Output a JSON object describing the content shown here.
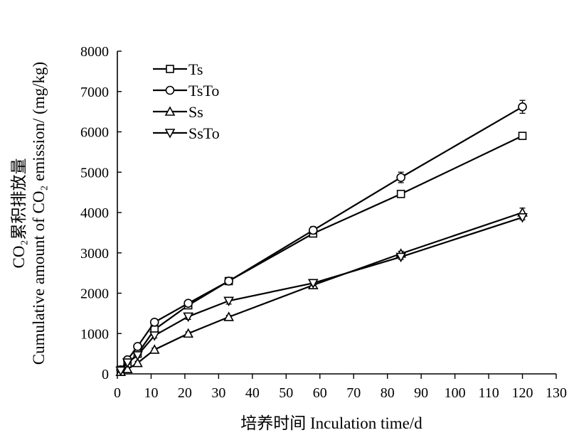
{
  "chart_data": {
    "type": "line",
    "ylabel_cn": "CO₂累积排放量",
    "ylabel_en": "Cumulative amount of CO₂ emission/ (mg/kg)",
    "xlabel": "培养时间 Inculation time/d",
    "xlim": [
      0,
      130
    ],
    "ylim": [
      0,
      8000
    ],
    "xticks": [
      "0",
      "10",
      "20",
      "30",
      "40",
      "50",
      "60",
      "70",
      "80",
      "90",
      "100",
      "110",
      "120",
      "130"
    ],
    "yticks": [
      "0",
      "1000",
      "2000",
      "3000",
      "4000",
      "5000",
      "6000",
      "7000",
      "8000"
    ],
    "legend_position": "top-left",
    "x": [
      1,
      3,
      6,
      11,
      21,
      33,
      58,
      84,
      120
    ],
    "series": [
      {
        "name": "Ts",
        "marker": "square",
        "values": [
          100,
          250,
          500,
          1100,
          1700,
          2300,
          3480,
          4460,
          5900
        ],
        "errors": [
          30,
          40,
          50,
          60,
          60,
          60,
          60,
          60,
          60
        ]
      },
      {
        "name": "TsTo",
        "marker": "circle",
        "values": [
          100,
          350,
          680,
          1280,
          1750,
          2300,
          3560,
          4870,
          6620
        ],
        "errors": [
          30,
          50,
          60,
          70,
          60,
          70,
          90,
          130,
          160
        ]
      },
      {
        "name": "Ss",
        "marker": "triangle-up",
        "values": [
          50,
          120,
          270,
          600,
          1000,
          1410,
          2200,
          2980,
          4000
        ],
        "errors": [
          20,
          30,
          40,
          40,
          40,
          40,
          50,
          60,
          110
        ]
      },
      {
        "name": "SsTo",
        "marker": "triangle-down",
        "values": [
          80,
          280,
          460,
          950,
          1420,
          1810,
          2250,
          2900,
          3880
        ],
        "errors": [
          30,
          40,
          50,
          60,
          70,
          80,
          60,
          60,
          60
        ]
      }
    ]
  }
}
